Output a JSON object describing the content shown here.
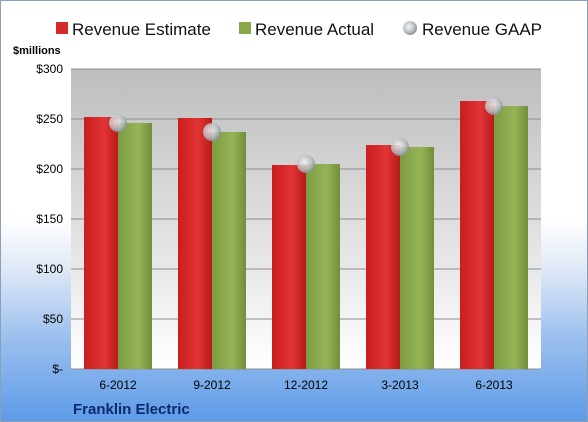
{
  "chart_data": {
    "type": "bar",
    "categories": [
      "6-2012",
      "9-2012",
      "12-2012",
      "3-2013",
      "6-2013"
    ],
    "series": [
      {
        "name": "Revenue Estimate",
        "values": [
          252,
          251,
          204,
          224,
          268
        ],
        "color": "#d42a2a",
        "kind": "bar"
      },
      {
        "name": "Revenue Actual",
        "values": [
          246,
          237,
          205,
          222,
          263
        ],
        "color": "#88a84c",
        "kind": "bar"
      },
      {
        "name": "Revenue GAAP",
        "values": [
          246,
          237,
          205,
          222,
          263
        ],
        "color": "#b8bcc2",
        "kind": "marker"
      }
    ],
    "ylim": [
      0,
      300
    ],
    "yticks": [
      0,
      50,
      100,
      150,
      200,
      250,
      300
    ],
    "ytick_labels": [
      "$-",
      "$50",
      "$100",
      "$150",
      "$200",
      "$250",
      "$300"
    ],
    "ylabel": "$millions",
    "grid": true,
    "legend": "top"
  },
  "footer": {
    "company": "Franklin Electric"
  }
}
